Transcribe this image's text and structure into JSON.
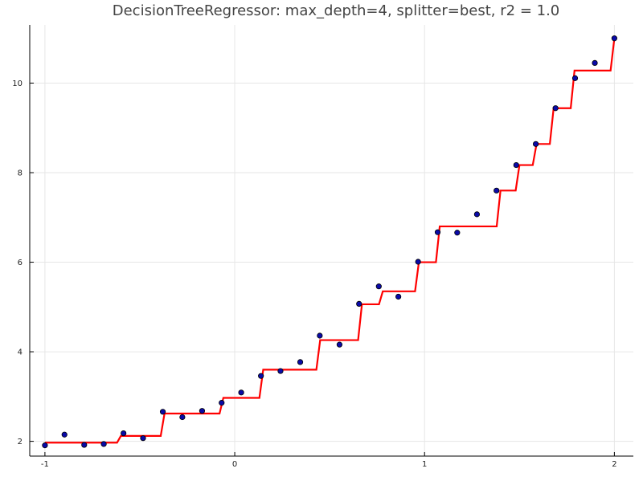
{
  "chart_data": {
    "type": "scatter",
    "title": "DecisionTreeRegressor: max_depth=4, splitter=best, r2 = 1.0",
    "xlim": [
      -1.08,
      2.1
    ],
    "ylim": [
      1.67,
      11.3
    ],
    "x_ticks": [
      -1,
      0,
      1,
      2
    ],
    "x_tick_labels": [
      "-1",
      "0",
      "1",
      "2"
    ],
    "y_ticks": [
      2,
      4,
      6,
      8,
      10
    ],
    "y_tick_labels": [
      "2",
      "4",
      "6",
      "8",
      "10"
    ],
    "grid": true,
    "legend": "none",
    "colors": {
      "points": "#0a0aa8",
      "point_edge": "#000000",
      "fit": "#ff0000",
      "grid": "#e6e6e6",
      "axis": "#000000"
    },
    "series": [
      {
        "kind": "scatter",
        "x": [
          -1.0,
          -0.897,
          -0.793,
          -0.69,
          -0.586,
          -0.483,
          -0.379,
          -0.276,
          -0.172,
          -0.069,
          0.034,
          0.138,
          0.241,
          0.345,
          0.448,
          0.552,
          0.655,
          0.759,
          0.862,
          0.966,
          1.069,
          1.172,
          1.276,
          1.379,
          1.483,
          1.586,
          1.69,
          1.793,
          1.897,
          2.0
        ],
        "y": [
          1.91,
          2.15,
          1.92,
          1.94,
          2.18,
          2.07,
          2.66,
          2.54,
          2.68,
          2.86,
          3.09,
          3.46,
          3.57,
          3.77,
          4.36,
          4.16,
          5.07,
          5.46,
          5.23,
          6.01,
          6.67,
          6.66,
          7.07,
          7.6,
          8.17,
          8.64,
          9.44,
          10.11,
          10.45,
          11.0
        ]
      },
      {
        "kind": "step",
        "x": [
          -1.0,
          -0.62,
          -0.6,
          -0.39,
          -0.37,
          -0.08,
          -0.06,
          0.13,
          0.15,
          0.43,
          0.45,
          0.65,
          0.67,
          0.76,
          0.78,
          0.95,
          0.97,
          1.06,
          1.08,
          1.38,
          1.4,
          1.48,
          1.5,
          1.57,
          1.59,
          1.66,
          1.68,
          1.77,
          1.79,
          1.98,
          2.0
        ],
        "y": [
          1.97,
          1.97,
          2.12,
          2.12,
          2.62,
          2.62,
          2.97,
          2.97,
          3.6,
          3.6,
          4.26,
          4.26,
          5.06,
          5.06,
          5.35,
          5.35,
          6.0,
          6.0,
          6.8,
          6.8,
          7.6,
          7.6,
          8.17,
          8.17,
          8.64,
          8.64,
          9.44,
          9.44,
          10.28,
          10.28,
          11.0
        ]
      }
    ]
  }
}
